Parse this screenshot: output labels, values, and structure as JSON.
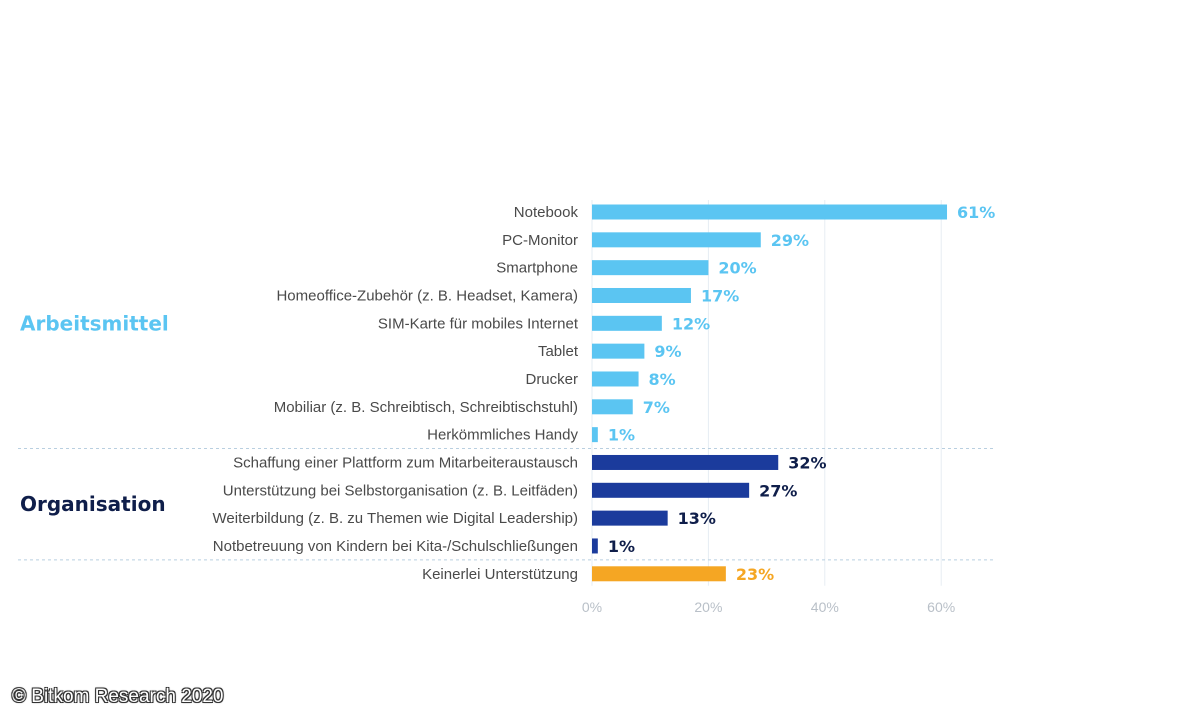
{
  "chart_data": {
    "type": "bar",
    "orientation": "horizontal",
    "title": "",
    "xlabel": "",
    "ylabel": "",
    "xlim": [
      0,
      70
    ],
    "ticks": [
      0,
      20,
      40,
      60
    ],
    "tick_labels": [
      "0%",
      "20%",
      "40%",
      "60%"
    ],
    "grid": true,
    "colors": {
      "arbeitsmittel": "#5bc5f2",
      "organisation": "#1b3b9c",
      "keinerlei": "#f5a623",
      "organisation_label": "#0f1e4a",
      "axis_text": "#b9c0c8"
    },
    "groups": [
      {
        "name": "Arbeitsmittel",
        "color_key": "arbeitsmittel",
        "categories": [
          "Notebook",
          "PC-Monitor",
          "Smartphone",
          "Homeoffice-Zubehör (z. B. Headset, Kamera)",
          "SIM-Karte für mobiles Internet",
          "Tablet",
          "Drucker",
          "Mobiliar (z. B. Schreibtisch, Schreibtischstuhl)",
          "Herkömmliches Handy"
        ],
        "values": [
          61,
          29,
          20,
          17,
          12,
          9,
          8,
          7,
          1
        ],
        "value_labels": [
          "61%",
          "29%",
          "20%",
          "17%",
          "12%",
          "9%",
          "8%",
          "7%",
          "1%"
        ]
      },
      {
        "name": "Organisation",
        "color_key": "organisation",
        "categories": [
          "Schaffung einer Plattform zum Mitarbeiteraustausch",
          "Unterstützung bei Selbstorganisation (z. B. Leitfäden)",
          "Weiterbildung (z. B. zu Themen wie Digital Leadership)",
          "Notbetreuung von Kindern bei Kita-/Schulschließungen"
        ],
        "values": [
          32,
          27,
          13,
          1
        ],
        "value_labels": [
          "32%",
          "27%",
          "13%",
          "1%"
        ]
      },
      {
        "name": "",
        "color_key": "keinerlei",
        "categories": [
          "Keinerlei Unterstützung"
        ],
        "values": [
          23
        ],
        "value_labels": [
          "23%"
        ]
      }
    ]
  },
  "footer": {
    "copyright": "© Bitkom Research 2020"
  }
}
